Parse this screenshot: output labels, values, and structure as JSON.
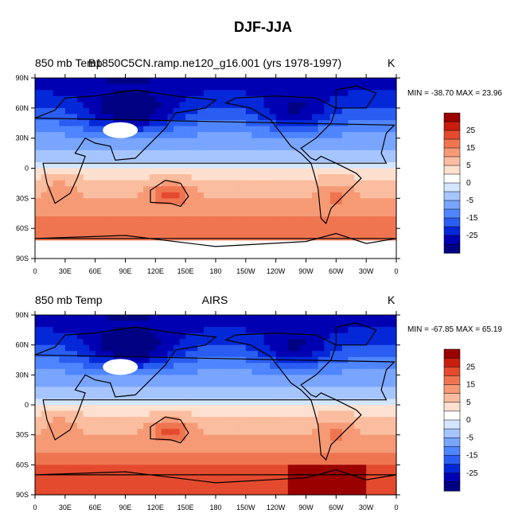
{
  "title": "DJF-JJA",
  "colors": {
    "levels": [
      "#000083",
      "#0000b3",
      "#0428d8",
      "#2a5df1",
      "#4f85ff",
      "#79a5ff",
      "#a6c5ff",
      "#d3e6ff",
      "#ffffff",
      "#fde0cf",
      "#fbbd9f",
      "#f69a76",
      "#ef7551",
      "#e44a2e",
      "#c91d0e",
      "#9a0000"
    ],
    "land_outline": "#000000",
    "missing": "#ffffff"
  },
  "axes": {
    "lat_labels": [
      "90N",
      "60N",
      "30N",
      "0",
      "30S",
      "60S",
      "90S"
    ],
    "lon_labels": [
      "0",
      "30E",
      "60E",
      "90E",
      "120E",
      "150E",
      "180",
      "150W",
      "120W",
      "90W",
      "60W",
      "30W",
      "0"
    ]
  },
  "colorbar": {
    "labels": [
      "25",
      "15",
      "5",
      "0",
      "-5",
      "-15",
      "-25"
    ]
  },
  "panels": [
    {
      "id": "model",
      "left_label": "850 mb Temp",
      "center_label": "B1850C5CN.ramp.ne120_g16.001 (yrs 1978-1997)",
      "units": "K",
      "stats": "MIN = -38.70 MAX =  23.96"
    },
    {
      "id": "obs",
      "left_label": "850 mb Temp",
      "center_label": "AIRS",
      "units": "K",
      "stats": "MIN = -67.85 MAX =  65.19"
    }
  ]
}
